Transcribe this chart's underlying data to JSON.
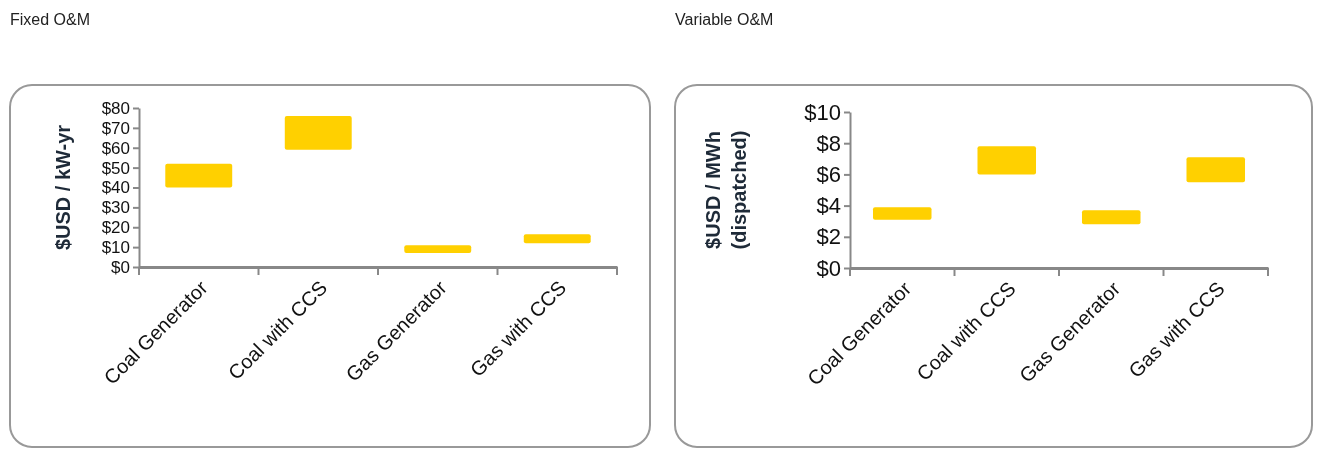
{
  "chart_data": [
    {
      "type": "bar",
      "title": "Fixed O&M",
      "ylabel": "$USD / kW-yr",
      "categories": [
        "Coal Generator",
        "Coal with CCS",
        "Gas Generator",
        "Gas with CCS"
      ],
      "series": [
        {
          "color": "#ffd000",
          "values": [
            12,
            17,
            4,
            4.5
          ],
          "base": [
            40,
            59,
            7,
            12
          ]
        }
      ],
      "ylim": [
        0,
        80
      ],
      "yticks": [
        {
          "value": 0,
          "label": "$0"
        },
        {
          "value": 10,
          "label": "$10"
        },
        {
          "value": 20,
          "label": "$20"
        },
        {
          "value": 30,
          "label": "$30"
        },
        {
          "value": 40,
          "label": "$40"
        },
        {
          "value": 50,
          "label": "$50"
        },
        {
          "value": 60,
          "label": "$60"
        },
        {
          "value": 70,
          "label": "$70"
        },
        {
          "value": 80,
          "label": "$80"
        }
      ],
      "grid": false
    },
    {
      "type": "bar",
      "title": "Variable O&M",
      "ylabel": "$USD / MWh (dispatched)",
      "categories": [
        "Coal Generator",
        "Coal with CCS",
        "Gas Generator",
        "Gas with CCS"
      ],
      "series": [
        {
          "color": "#ffd000",
          "values": [
            0.8,
            1.8,
            0.9,
            1.6
          ],
          "base": [
            3.1,
            6.0,
            2.8,
            5.5
          ]
        }
      ],
      "ylim": [
        0,
        10
      ],
      "yticks": [
        {
          "value": 0,
          "label": "$0"
        },
        {
          "value": 2,
          "label": "$2"
        },
        {
          "value": 4,
          "label": "$4"
        },
        {
          "value": 6,
          "label": "$6"
        },
        {
          "value": 8,
          "label": "$8"
        },
        {
          "value": 10,
          "label": "$10"
        }
      ],
      "grid": false
    }
  ]
}
